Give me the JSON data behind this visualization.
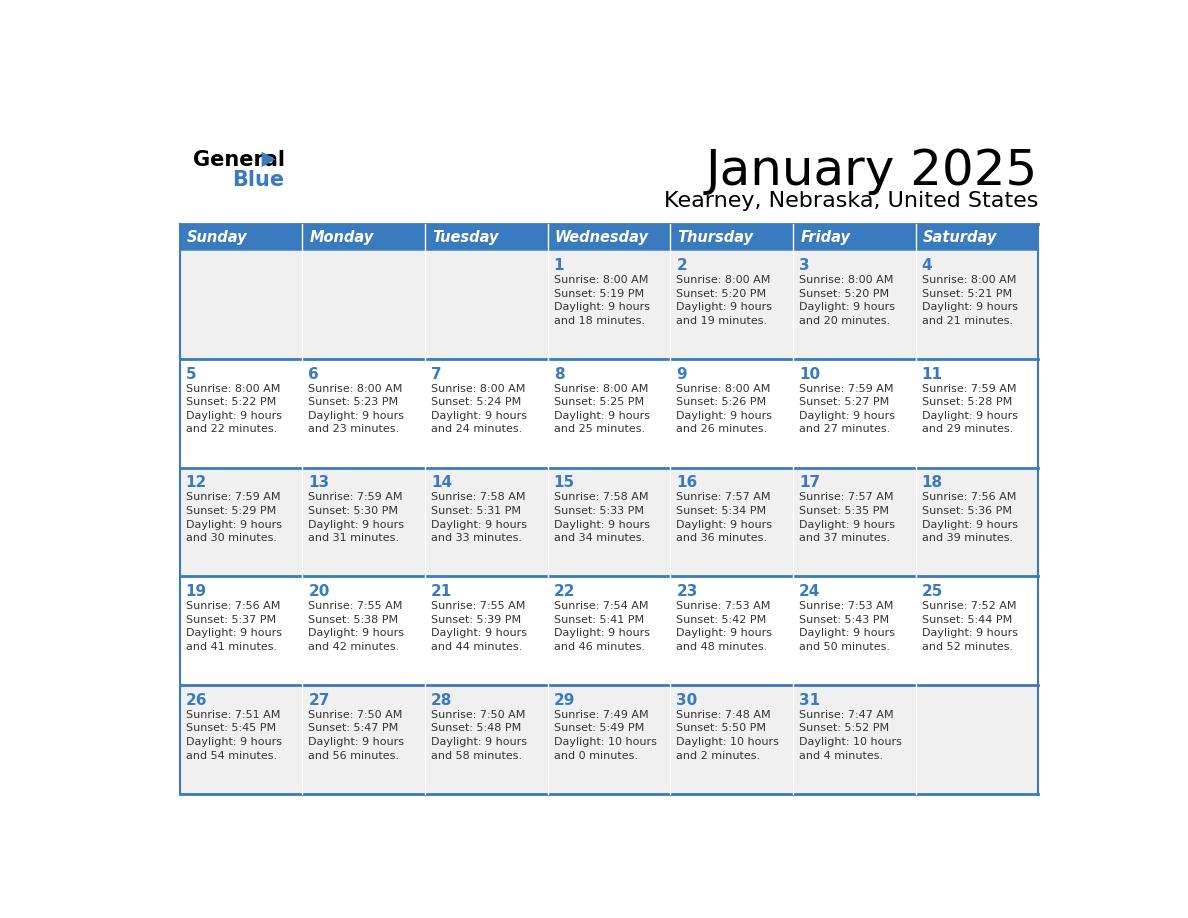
{
  "title": "January 2025",
  "subtitle": "Kearney, Nebraska, United States",
  "header_bg": "#3a7abf",
  "header_text": "#ffffff",
  "row_bg_odd": "#f0f0f0",
  "row_bg_even": "#ffffff",
  "day_number_color": "#3a7abf",
  "cell_text_color": "#333333",
  "border_color": "#3a7abf",
  "days_of_week": [
    "Sunday",
    "Monday",
    "Tuesday",
    "Wednesday",
    "Thursday",
    "Friday",
    "Saturday"
  ],
  "calendar": [
    [
      {
        "day": "",
        "sunrise": "",
        "sunset": "",
        "daylight": ""
      },
      {
        "day": "",
        "sunrise": "",
        "sunset": "",
        "daylight": ""
      },
      {
        "day": "",
        "sunrise": "",
        "sunset": "",
        "daylight": ""
      },
      {
        "day": "1",
        "sunrise": "8:00 AM",
        "sunset": "5:19 PM",
        "daylight": "9 hours\nand 18 minutes."
      },
      {
        "day": "2",
        "sunrise": "8:00 AM",
        "sunset": "5:20 PM",
        "daylight": "9 hours\nand 19 minutes."
      },
      {
        "day": "3",
        "sunrise": "8:00 AM",
        "sunset": "5:20 PM",
        "daylight": "9 hours\nand 20 minutes."
      },
      {
        "day": "4",
        "sunrise": "8:00 AM",
        "sunset": "5:21 PM",
        "daylight": "9 hours\nand 21 minutes."
      }
    ],
    [
      {
        "day": "5",
        "sunrise": "8:00 AM",
        "sunset": "5:22 PM",
        "daylight": "9 hours\nand 22 minutes."
      },
      {
        "day": "6",
        "sunrise": "8:00 AM",
        "sunset": "5:23 PM",
        "daylight": "9 hours\nand 23 minutes."
      },
      {
        "day": "7",
        "sunrise": "8:00 AM",
        "sunset": "5:24 PM",
        "daylight": "9 hours\nand 24 minutes."
      },
      {
        "day": "8",
        "sunrise": "8:00 AM",
        "sunset": "5:25 PM",
        "daylight": "9 hours\nand 25 minutes."
      },
      {
        "day": "9",
        "sunrise": "8:00 AM",
        "sunset": "5:26 PM",
        "daylight": "9 hours\nand 26 minutes."
      },
      {
        "day": "10",
        "sunrise": "7:59 AM",
        "sunset": "5:27 PM",
        "daylight": "9 hours\nand 27 minutes."
      },
      {
        "day": "11",
        "sunrise": "7:59 AM",
        "sunset": "5:28 PM",
        "daylight": "9 hours\nand 29 minutes."
      }
    ],
    [
      {
        "day": "12",
        "sunrise": "7:59 AM",
        "sunset": "5:29 PM",
        "daylight": "9 hours\nand 30 minutes."
      },
      {
        "day": "13",
        "sunrise": "7:59 AM",
        "sunset": "5:30 PM",
        "daylight": "9 hours\nand 31 minutes."
      },
      {
        "day": "14",
        "sunrise": "7:58 AM",
        "sunset": "5:31 PM",
        "daylight": "9 hours\nand 33 minutes."
      },
      {
        "day": "15",
        "sunrise": "7:58 AM",
        "sunset": "5:33 PM",
        "daylight": "9 hours\nand 34 minutes."
      },
      {
        "day": "16",
        "sunrise": "7:57 AM",
        "sunset": "5:34 PM",
        "daylight": "9 hours\nand 36 minutes."
      },
      {
        "day": "17",
        "sunrise": "7:57 AM",
        "sunset": "5:35 PM",
        "daylight": "9 hours\nand 37 minutes."
      },
      {
        "day": "18",
        "sunrise": "7:56 AM",
        "sunset": "5:36 PM",
        "daylight": "9 hours\nand 39 minutes."
      }
    ],
    [
      {
        "day": "19",
        "sunrise": "7:56 AM",
        "sunset": "5:37 PM",
        "daylight": "9 hours\nand 41 minutes."
      },
      {
        "day": "20",
        "sunrise": "7:55 AM",
        "sunset": "5:38 PM",
        "daylight": "9 hours\nand 42 minutes."
      },
      {
        "day": "21",
        "sunrise": "7:55 AM",
        "sunset": "5:39 PM",
        "daylight": "9 hours\nand 44 minutes."
      },
      {
        "day": "22",
        "sunrise": "7:54 AM",
        "sunset": "5:41 PM",
        "daylight": "9 hours\nand 46 minutes."
      },
      {
        "day": "23",
        "sunrise": "7:53 AM",
        "sunset": "5:42 PM",
        "daylight": "9 hours\nand 48 minutes."
      },
      {
        "day": "24",
        "sunrise": "7:53 AM",
        "sunset": "5:43 PM",
        "daylight": "9 hours\nand 50 minutes."
      },
      {
        "day": "25",
        "sunrise": "7:52 AM",
        "sunset": "5:44 PM",
        "daylight": "9 hours\nand 52 minutes."
      }
    ],
    [
      {
        "day": "26",
        "sunrise": "7:51 AM",
        "sunset": "5:45 PM",
        "daylight": "9 hours\nand 54 minutes."
      },
      {
        "day": "27",
        "sunrise": "7:50 AM",
        "sunset": "5:47 PM",
        "daylight": "9 hours\nand 56 minutes."
      },
      {
        "day": "28",
        "sunrise": "7:50 AM",
        "sunset": "5:48 PM",
        "daylight": "9 hours\nand 58 minutes."
      },
      {
        "day": "29",
        "sunrise": "7:49 AM",
        "sunset": "5:49 PM",
        "daylight": "10 hours\nand 0 minutes."
      },
      {
        "day": "30",
        "sunrise": "7:48 AM",
        "sunset": "5:50 PM",
        "daylight": "10 hours\nand 2 minutes."
      },
      {
        "day": "31",
        "sunrise": "7:47 AM",
        "sunset": "5:52 PM",
        "daylight": "10 hours\nand 4 minutes."
      },
      {
        "day": "",
        "sunrise": "",
        "sunset": "",
        "daylight": ""
      }
    ]
  ]
}
